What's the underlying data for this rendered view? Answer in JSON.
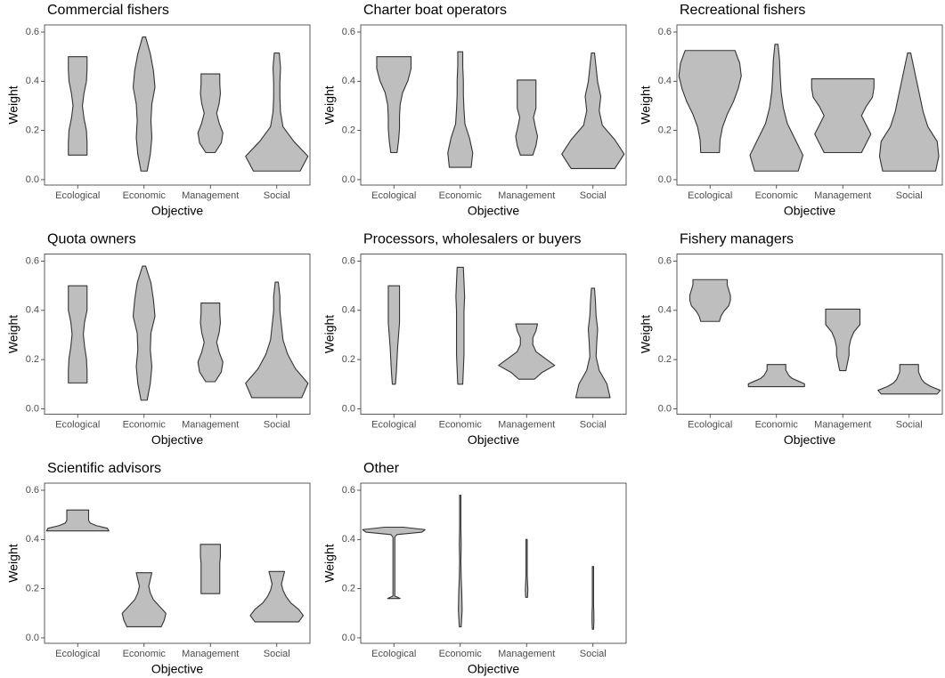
{
  "chart_data": [
    {
      "type": "violin",
      "title": "Commercial fishers",
      "xlabel": "Objective",
      "ylabel": "Weight",
      "color": "#bebebe",
      "categories": [
        "Ecological",
        "Economic",
        "Management",
        "Social"
      ],
      "ylim": [
        -0.022,
        0.629
      ],
      "yticks": [
        {
          "value": 0,
          "label": "0.0"
        },
        0.2,
        0.4,
        0.6
      ],
      "violins": [
        {
          "min": 0.1,
          "max": 0.5,
          "widths": [
            0.3,
            0.3,
            0.28,
            0.2,
            0.15,
            0.2,
            0.28,
            0.3,
            0.3
          ]
        },
        {
          "min": 0.035,
          "max": 0.58,
          "widths": [
            0.1,
            0.2,
            0.25,
            0.22,
            0.25,
            0.35,
            0.3,
            0.2,
            0.05
          ]
        },
        {
          "min": 0.11,
          "max": 0.43,
          "widths": [
            0.15,
            0.35,
            0.4,
            0.28,
            0.2,
            0.28,
            0.32,
            0.3,
            0.3
          ]
        },
        {
          "min": 0.035,
          "max": 0.515,
          "widths": [
            0.75,
            1.0,
            0.55,
            0.2,
            0.12,
            0.1,
            0.1,
            0.12,
            0.08
          ]
        }
      ]
    },
    {
      "type": "violin",
      "title": "Charter boat operators",
      "xlabel": "Objective",
      "ylabel": "Weight",
      "color": "#bebebe",
      "categories": [
        "Ecological",
        "Economic",
        "Management",
        "Social"
      ],
      "ylim": [
        -0.022,
        0.629
      ],
      "yticks": [
        {
          "value": 0,
          "label": "0.0"
        },
        0.2,
        0.4,
        0.6
      ],
      "violins": [
        {
          "min": 0.11,
          "max": 0.5,
          "widths": [
            0.1,
            0.15,
            0.18,
            0.18,
            0.2,
            0.28,
            0.45,
            0.55,
            0.55
          ]
        },
        {
          "min": 0.05,
          "max": 0.52,
          "widths": [
            0.35,
            0.4,
            0.3,
            0.15,
            0.12,
            0.1,
            0.1,
            0.08,
            0.08
          ]
        },
        {
          "min": 0.1,
          "max": 0.405,
          "widths": [
            0.2,
            0.3,
            0.35,
            0.28,
            0.22,
            0.3,
            0.3,
            0.3,
            0.3
          ]
        },
        {
          "min": 0.045,
          "max": 0.515,
          "widths": [
            0.7,
            1.0,
            0.7,
            0.3,
            0.2,
            0.25,
            0.15,
            0.1,
            0.05
          ]
        }
      ]
    },
    {
      "type": "violin",
      "title": "Recreational fishers",
      "xlabel": "Objective",
      "ylabel": "Weight",
      "color": "#bebebe",
      "categories": [
        "Ecological",
        "Economic",
        "Management",
        "Social"
      ],
      "ylim": [
        -0.022,
        0.629
      ],
      "yticks": [
        {
          "value": 0,
          "label": "0.0"
        },
        0.2,
        0.4,
        0.6
      ],
      "violins": [
        {
          "min": 0.11,
          "max": 0.525,
          "widths": [
            0.3,
            0.32,
            0.4,
            0.55,
            0.75,
            0.9,
            1.0,
            0.95,
            0.8
          ]
        },
        {
          "min": 0.035,
          "max": 0.55,
          "widths": [
            0.7,
            0.85,
            0.6,
            0.35,
            0.22,
            0.15,
            0.12,
            0.1,
            0.05
          ]
        },
        {
          "min": 0.11,
          "max": 0.41,
          "widths": [
            0.6,
            0.75,
            0.9,
            0.75,
            0.6,
            0.75,
            0.95,
            1.0,
            1.0
          ]
        },
        {
          "min": 0.035,
          "max": 0.515,
          "widths": [
            0.85,
            0.95,
            0.9,
            0.6,
            0.45,
            0.35,
            0.25,
            0.15,
            0.05
          ]
        }
      ]
    },
    {
      "type": "violin",
      "title": "Quota owners",
      "xlabel": "Objective",
      "ylabel": "Weight",
      "color": "#bebebe",
      "categories": [
        "Ecological",
        "Economic",
        "Management",
        "Social"
      ],
      "ylim": [
        -0.022,
        0.629
      ],
      "yticks": [
        {
          "value": 0,
          "label": "0.0"
        },
        0.2,
        0.4,
        0.6
      ],
      "violins": [
        {
          "min": 0.105,
          "max": 0.5,
          "widths": [
            0.3,
            0.3,
            0.28,
            0.22,
            0.18,
            0.22,
            0.3,
            0.3,
            0.3
          ]
        },
        {
          "min": 0.035,
          "max": 0.58,
          "widths": [
            0.1,
            0.2,
            0.25,
            0.2,
            0.22,
            0.35,
            0.3,
            0.22,
            0.05
          ]
        },
        {
          "min": 0.11,
          "max": 0.43,
          "widths": [
            0.15,
            0.35,
            0.4,
            0.28,
            0.2,
            0.28,
            0.32,
            0.3,
            0.3
          ]
        },
        {
          "min": 0.045,
          "max": 0.515,
          "widths": [
            0.8,
            1.0,
            0.6,
            0.35,
            0.2,
            0.15,
            0.1,
            0.1,
            0.05
          ]
        }
      ]
    },
    {
      "type": "violin",
      "title": "Processors, wholesalers or buyers",
      "xlabel": "Objective",
      "ylabel": "Weight",
      "color": "#bebebe",
      "categories": [
        "Ecological",
        "Economic",
        "Management",
        "Social"
      ],
      "ylim": [
        -0.022,
        0.629
      ],
      "yticks": [
        {
          "value": 0,
          "label": "0.0"
        },
        0.2,
        0.4,
        0.6
      ],
      "violins": [
        {
          "min": 0.1,
          "max": 0.5,
          "widths": [
            0.05,
            0.08,
            0.1,
            0.12,
            0.15,
            0.18,
            0.18,
            0.18,
            0.18
          ]
        },
        {
          "min": 0.1,
          "max": 0.575,
          "widths": [
            0.08,
            0.1,
            0.12,
            0.12,
            0.12,
            0.12,
            0.14,
            0.12,
            0.1
          ]
        },
        {
          "min": 0.12,
          "max": 0.345,
          "widths": [
            0.25,
            0.5,
            0.9,
            0.6,
            0.3,
            0.2,
            0.2,
            0.3,
            0.35
          ]
        },
        {
          "min": 0.045,
          "max": 0.49,
          "widths": [
            0.55,
            0.45,
            0.2,
            0.1,
            0.12,
            0.15,
            0.1,
            0.08,
            0.05
          ]
        }
      ]
    },
    {
      "type": "violin",
      "title": "Fishery managers",
      "xlabel": "Objective",
      "ylabel": "Weight",
      "color": "#bebebe",
      "categories": [
        "Ecological",
        "Economic",
        "Management",
        "Social"
      ],
      "ylim": [
        -0.022,
        0.629
      ],
      "yticks": [
        {
          "value": 0,
          "label": "0.0"
        },
        0.2,
        0.4,
        0.6
      ],
      "violins": [
        {
          "min": 0.355,
          "max": 0.525,
          "widths": [
            0.3,
            0.35,
            0.45,
            0.6,
            0.65,
            0.65,
            0.6,
            0.55,
            0.55
          ]
        },
        {
          "min": 0.09,
          "max": 0.18,
          "widths": [
            0.9,
            0.9,
            0.7,
            0.5,
            0.4,
            0.35,
            0.3,
            0.3,
            0.3
          ]
        },
        {
          "min": 0.155,
          "max": 0.405,
          "widths": [
            0.1,
            0.15,
            0.2,
            0.2,
            0.25,
            0.35,
            0.55,
            0.55,
            0.55
          ]
        },
        {
          "min": 0.06,
          "max": 0.18,
          "widths": [
            0.9,
            1.0,
            0.7,
            0.5,
            0.4,
            0.35,
            0.3,
            0.3,
            0.3
          ]
        }
      ]
    },
    {
      "type": "violin",
      "title": "Scientific advisors",
      "xlabel": "Objective",
      "ylabel": "Weight",
      "color": "#bebebe",
      "categories": [
        "Ecological",
        "Economic",
        "Management",
        "Social"
      ],
      "ylim": [
        -0.022,
        0.629
      ],
      "yticks": [
        {
          "value": 0,
          "label": "0.0"
        },
        0.2,
        0.4,
        0.6
      ],
      "violins": [
        {
          "min": 0.435,
          "max": 0.52,
          "widths": [
            1.0,
            0.95,
            0.6,
            0.4,
            0.35,
            0.35,
            0.35,
            0.35,
            0.35
          ]
        },
        {
          "min": 0.045,
          "max": 0.265,
          "widths": [
            0.55,
            0.65,
            0.7,
            0.5,
            0.3,
            0.2,
            0.15,
            0.2,
            0.25
          ]
        },
        {
          "min": 0.18,
          "max": 0.38,
          "widths": [
            0.3,
            0.3,
            0.3,
            0.3,
            0.3,
            0.3,
            0.32,
            0.32,
            0.32
          ]
        },
        {
          "min": 0.065,
          "max": 0.27,
          "widths": [
            0.7,
            0.85,
            0.7,
            0.45,
            0.3,
            0.2,
            0.15,
            0.2,
            0.25
          ]
        }
      ]
    },
    {
      "type": "violin",
      "title": "Other",
      "xlabel": "Objective",
      "ylabel": "Weight",
      "color": "#bebebe",
      "categories": [
        "Ecological",
        "Economic",
        "Management",
        "Social"
      ],
      "ylim": [
        -0.022,
        0.629
      ],
      "yticks": [
        {
          "value": 0,
          "label": "0.0"
        },
        0.2,
        0.4,
        0.6
      ],
      "violins": [
        {
          "min": 0.16,
          "max": 0.45,
          "widths": [
            0.2,
            0.03,
            0.03,
            0.03,
            0.03,
            0.03,
            0.03,
            0.03,
            0.03,
            0.03,
            0.03,
            0.03,
            0.03,
            0.03,
            0.03,
            0.03,
            0.03,
            0.03,
            0.03,
            0.03,
            0.03,
            0.03,
            0.03,
            0.03,
            0.03,
            0.03,
            0.1,
            0.9,
            1.0,
            0.3
          ]
        },
        {
          "min": 0.045,
          "max": 0.58,
          "widths": [
            0.03,
            0.06,
            0.05,
            0.03,
            0.02,
            0.03,
            0.02,
            0.02,
            0.02
          ]
        },
        {
          "min": 0.165,
          "max": 0.4,
          "widths": [
            0.03,
            0.04,
            0.03,
            0.02,
            0.02,
            0.02,
            0.02,
            0.02,
            0.02
          ]
        },
        {
          "min": 0.035,
          "max": 0.29,
          "widths": [
            0.02,
            0.03,
            0.03,
            0.02,
            0.02,
            0.02,
            0.02,
            0.02,
            0.02
          ]
        }
      ]
    }
  ]
}
